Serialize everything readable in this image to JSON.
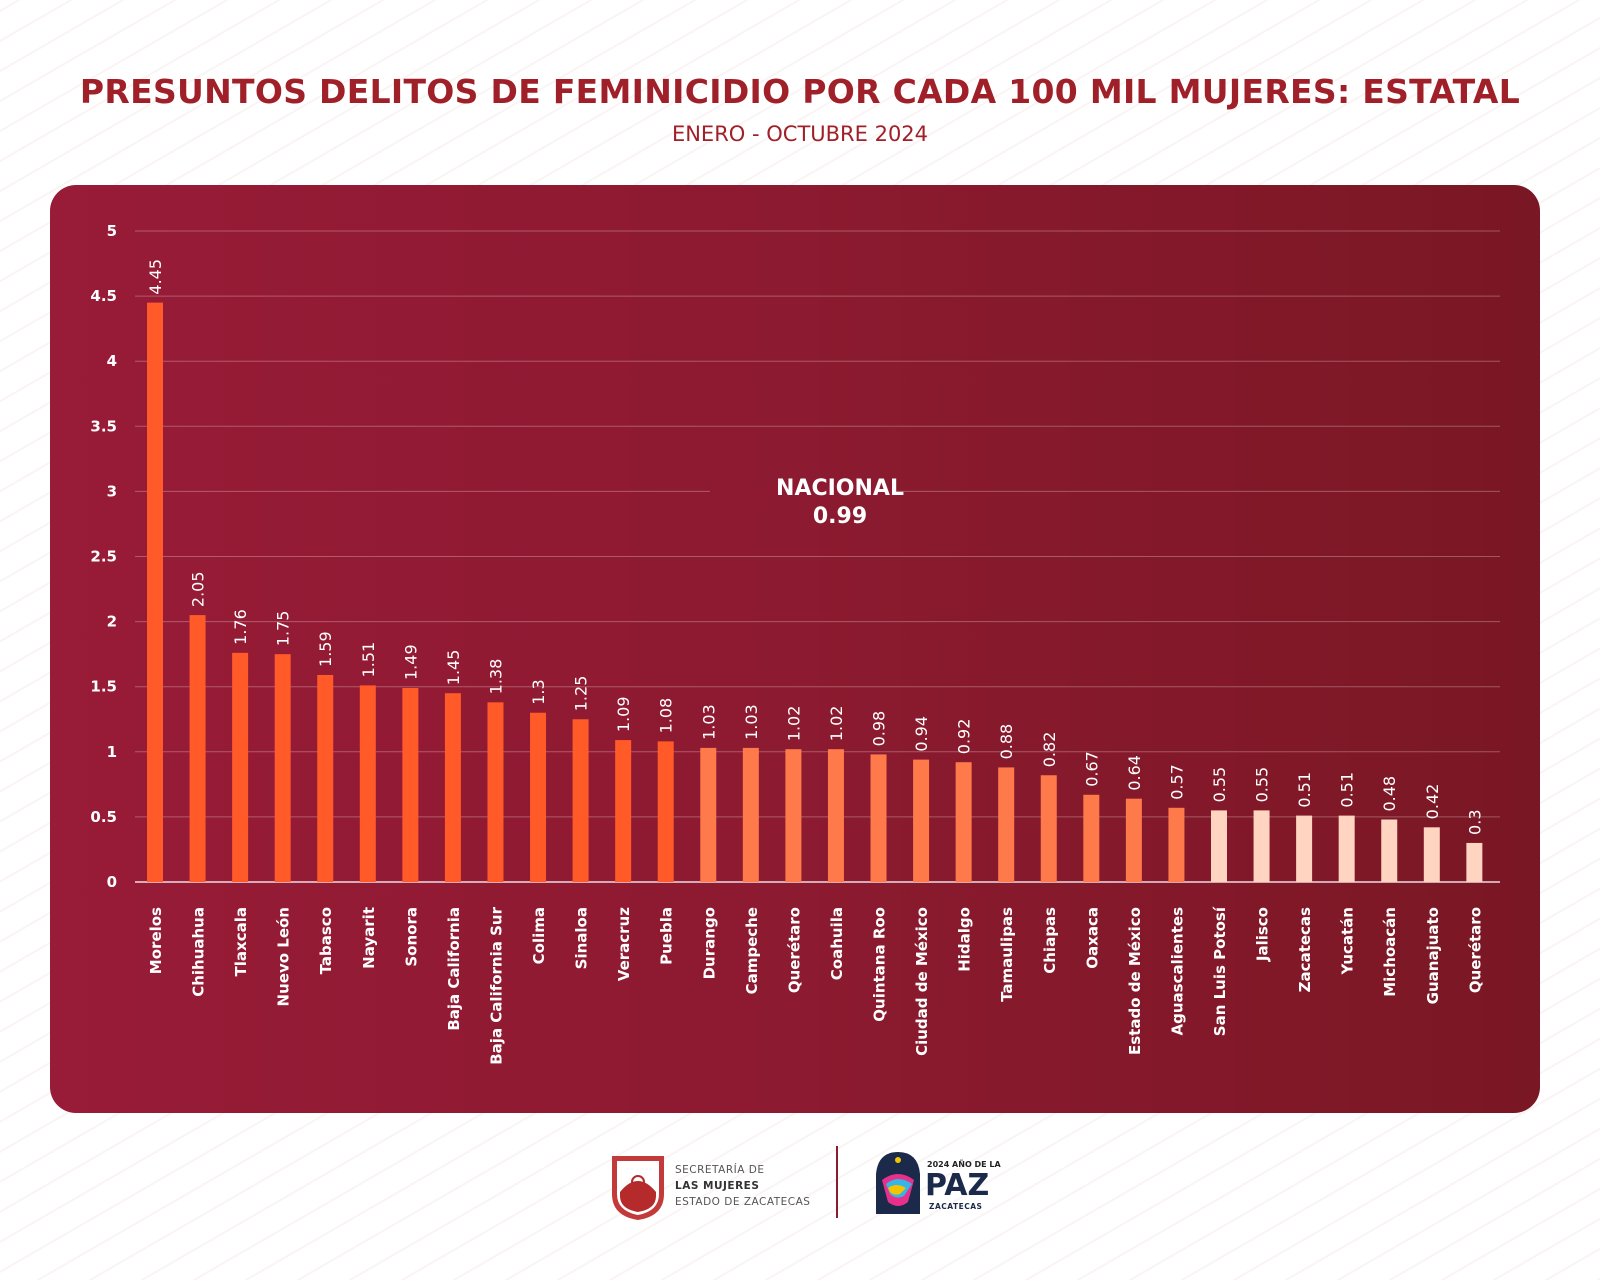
{
  "header": {
    "title": "PRESUNTOS DELITOS DE FEMINICIDIO POR CADA 100 MIL MUJERES: ESTATAL",
    "subtitle": "ENERO - OCTUBRE 2024"
  },
  "annotation": {
    "label": "NACIONAL",
    "value": "0.99"
  },
  "chart_data": {
    "type": "bar",
    "title": "PRESUNTOS DELITOS DE FEMINICIDIO POR CADA 100 MIL MUJERES: ESTATAL",
    "subtitle": "ENERO - OCTUBRE 2024",
    "xlabel": "",
    "ylabel": "",
    "ylim": [
      0,
      5
    ],
    "yticks": [
      "0",
      "0.5",
      "1",
      "1.5",
      "2",
      "2.5",
      "3",
      "3.5",
      "4",
      "4.5",
      "5"
    ],
    "grid": true,
    "categories": [
      "Morelos",
      "Chihuahua",
      "Tlaxcala",
      "Nuevo León",
      "Tabasco",
      "Nayarit",
      "Sonora",
      "Baja California",
      "Baja California Sur",
      "Colima",
      "Sinaloa",
      "Veracruz",
      "Puebla",
      "Durango",
      "Campeche",
      "Querétaro",
      "Coahuila",
      "Quintana Roo",
      "Ciudad de México",
      "Hidalgo",
      "Tamaulipas",
      "Chiapas",
      "Oaxaca",
      "Estado de México",
      "Aguascalientes",
      "San Luis Potosí",
      "Jalisco",
      "Zacatecas",
      "Yucatán",
      "Michoacán",
      "Guanajuato",
      "Querétaro"
    ],
    "values": [
      4.45,
      2.05,
      1.76,
      1.75,
      1.59,
      1.51,
      1.49,
      1.45,
      1.38,
      1.3,
      1.25,
      1.09,
      1.08,
      1.03,
      1.03,
      1.02,
      1.02,
      0.98,
      0.94,
      0.92,
      0.88,
      0.82,
      0.67,
      0.64,
      0.57,
      0.55,
      0.55,
      0.51,
      0.51,
      0.48,
      0.42,
      0.3
    ],
    "value_labels": [
      "4.45",
      "2.05",
      "1.76",
      "1.75",
      "1.59",
      "1.51",
      "1.49",
      "1.45",
      "1.38",
      "1.3",
      "1.25",
      "1.09",
      "1.08",
      "1.03",
      "1.03",
      "1.02",
      "1.02",
      "0.98",
      "0.94",
      "0.92",
      "0.88",
      "0.82",
      "0.67",
      "0.64",
      "0.57",
      "0.55",
      "0.55",
      "0.51",
      "0.51",
      "0.48",
      "0.42",
      "0.3"
    ],
    "reference_line": {
      "label": "NACIONAL",
      "value": 0.99
    },
    "colors": {
      "high": "#ff5a28",
      "mid": "#ff7a4a",
      "low": "#ffd5c2",
      "background": "#8c1a30"
    }
  },
  "footer": {
    "secretaria": {
      "line1": "SECRETARÍA DE",
      "line2": "LAS MUJERES",
      "line3": "ESTADO DE ZACATECAS"
    },
    "paz": {
      "small": "2024 AÑO DE LA",
      "big": "PAZ",
      "sub": "ZACATECAS"
    }
  }
}
